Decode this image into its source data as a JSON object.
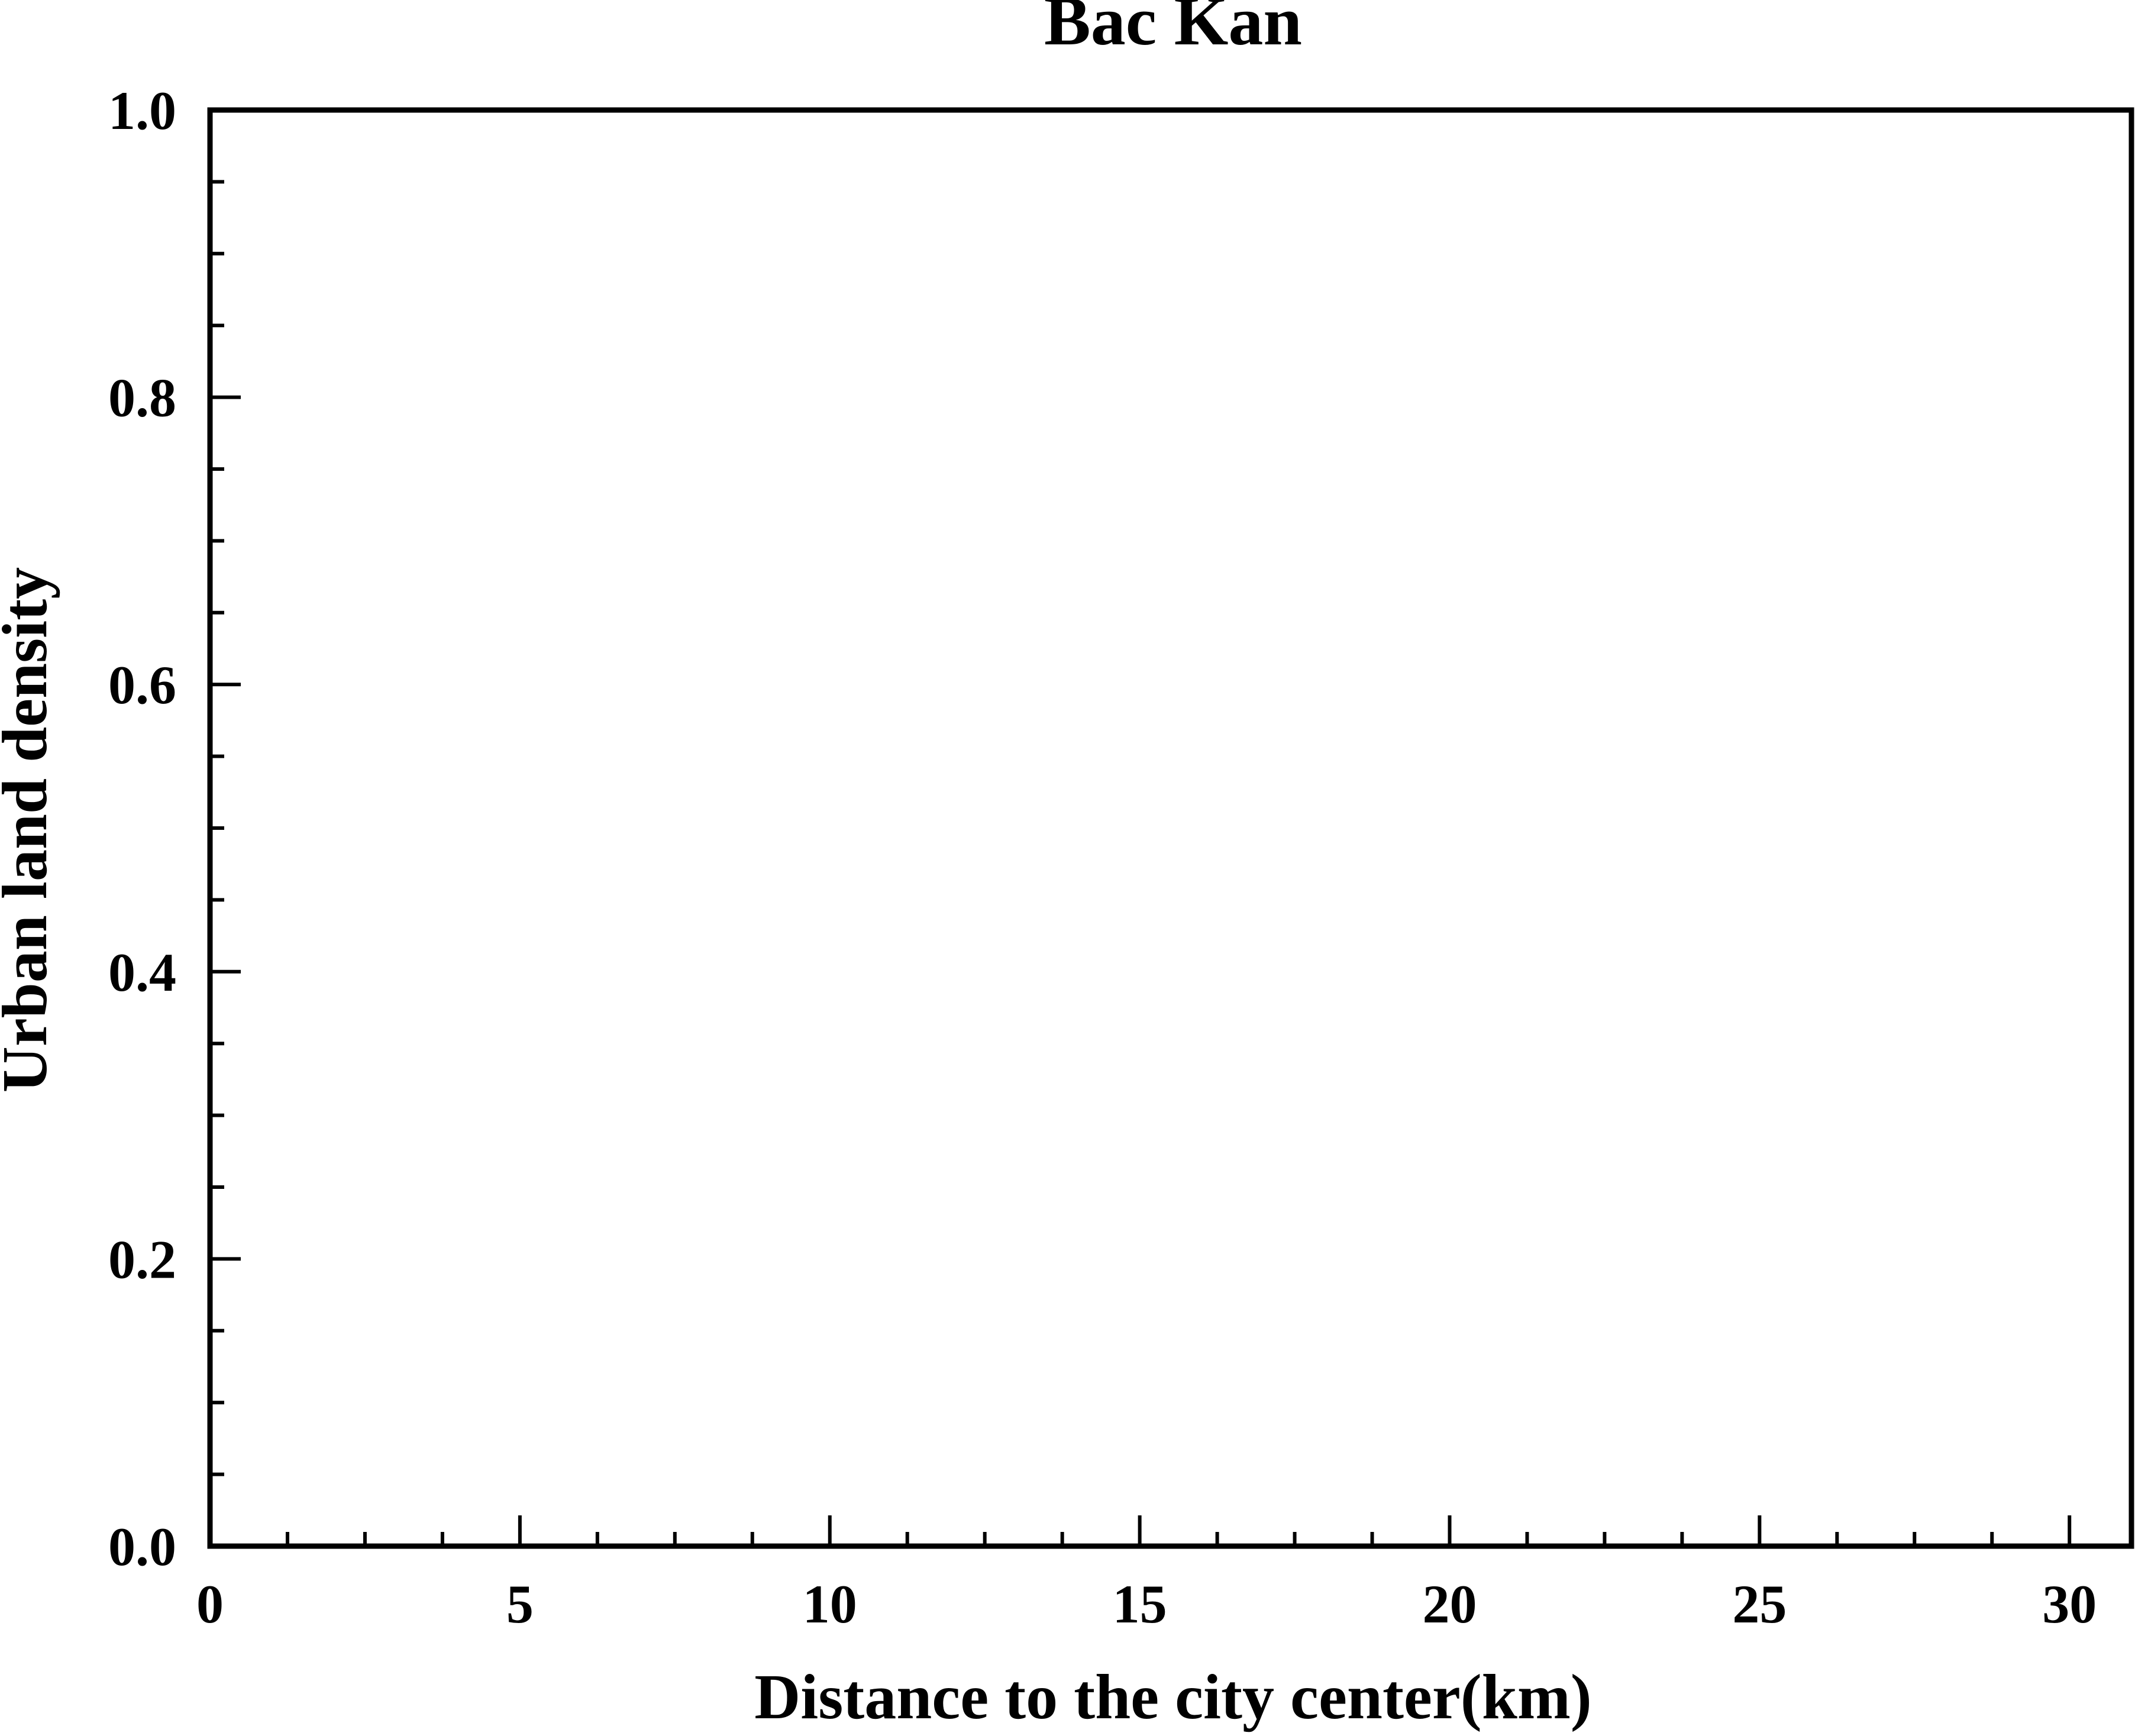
{
  "chart_data": {
    "type": "line",
    "title": "Bac Kan",
    "xlabel": "Distance to the city center(km)",
    "ylabel": "Urban land density",
    "xlim": [
      0,
      31
    ],
    "ylim": [
      0,
      1
    ],
    "x_major_ticks": [
      0,
      5,
      10,
      15,
      20,
      25,
      30
    ],
    "x_tick_labels": [
      "0",
      "5",
      "10",
      "15",
      "20",
      "25",
      "30"
    ],
    "x_minor_step": 1.25,
    "y_major_ticks": [
      0,
      0.2,
      0.4,
      0.6,
      0.8,
      1.0
    ],
    "y_tick_labels": [
      "0.0",
      "0.2",
      "0.4",
      "0.6",
      "0.8",
      "1.0"
    ],
    "y_minor_step": 0.05,
    "grid": false,
    "series": []
  }
}
